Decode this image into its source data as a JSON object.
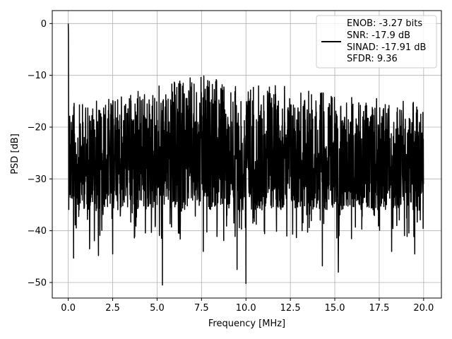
{
  "chart_data": {
    "type": "line",
    "title": "",
    "xlabel": "Frequency [MHz]",
    "ylabel": "PSD [dB]",
    "xlim": [
      -0.9,
      21.0
    ],
    "ylim": [
      -53.0,
      2.5
    ],
    "x_ticks": [
      0.0,
      2.5,
      5.0,
      7.5,
      10.0,
      12.5,
      15.0,
      17.5,
      20.0
    ],
    "x_tick_labels": [
      "0.0",
      "2.5",
      "5.0",
      "7.5",
      "10.0",
      "12.5",
      "15.0",
      "17.5",
      "20.0"
    ],
    "y_ticks": [
      0,
      -10,
      -20,
      -30,
      -40,
      -50
    ],
    "y_tick_labels": [
      "0",
      "−10",
      "−20",
      "−30",
      "−40",
      "−50"
    ],
    "grid": true,
    "legend_position": "top-right",
    "series": [
      {
        "name": "ENOB: -3.27 bits\nSNR: -17.9 dB\nSINAD: -17.91 dB\nSFDR: 9.36",
        "color": "#000000",
        "x_range": [
          0.0,
          20.0
        ],
        "envelope_top": [
          [
            0.0,
            0.0
          ],
          [
            0.05,
            -10
          ],
          [
            0.12,
            -13
          ],
          [
            0.3,
            -15
          ],
          [
            0.5,
            -15.5
          ],
          [
            1.0,
            -15
          ],
          [
            2.0,
            -14.5
          ],
          [
            3.0,
            -13.5
          ],
          [
            4.0,
            -13
          ],
          [
            5.0,
            -12
          ],
          [
            6.0,
            -11
          ],
          [
            6.4,
            -9.8
          ],
          [
            7.0,
            -10.5
          ],
          [
            7.6,
            -9.8
          ],
          [
            8.0,
            -10.5
          ],
          [
            9.0,
            -11
          ],
          [
            10.0,
            -11.5
          ],
          [
            11.0,
            -11.5
          ],
          [
            12.0,
            -11.8
          ],
          [
            13.0,
            -12.5
          ],
          [
            14.0,
            -13
          ],
          [
            15.0,
            -13.5
          ],
          [
            16.0,
            -14
          ],
          [
            17.0,
            -14
          ],
          [
            18.0,
            -14.5
          ],
          [
            19.0,
            -15
          ],
          [
            20.0,
            -15
          ]
        ],
        "notable_dips": [
          [
            0.3,
            -45.3
          ],
          [
            1.2,
            -43.5
          ],
          [
            1.7,
            -44.8
          ],
          [
            2.5,
            -44.5
          ],
          [
            5.3,
            -50.5
          ],
          [
            7.6,
            -44.0
          ],
          [
            9.5,
            -47.5
          ],
          [
            10.0,
            -50.2
          ],
          [
            14.3,
            -46.8
          ],
          [
            15.2,
            -48.0
          ],
          [
            18.2,
            -44.0
          ],
          [
            19.5,
            -44.5
          ]
        ]
      }
    ]
  },
  "legend": {
    "line1": "ENOB: -3.27 bits",
    "line2": "SNR: -17.9 dB",
    "line3": "SINAD: -17.91 dB",
    "line4": "SFDR: 9.36"
  }
}
